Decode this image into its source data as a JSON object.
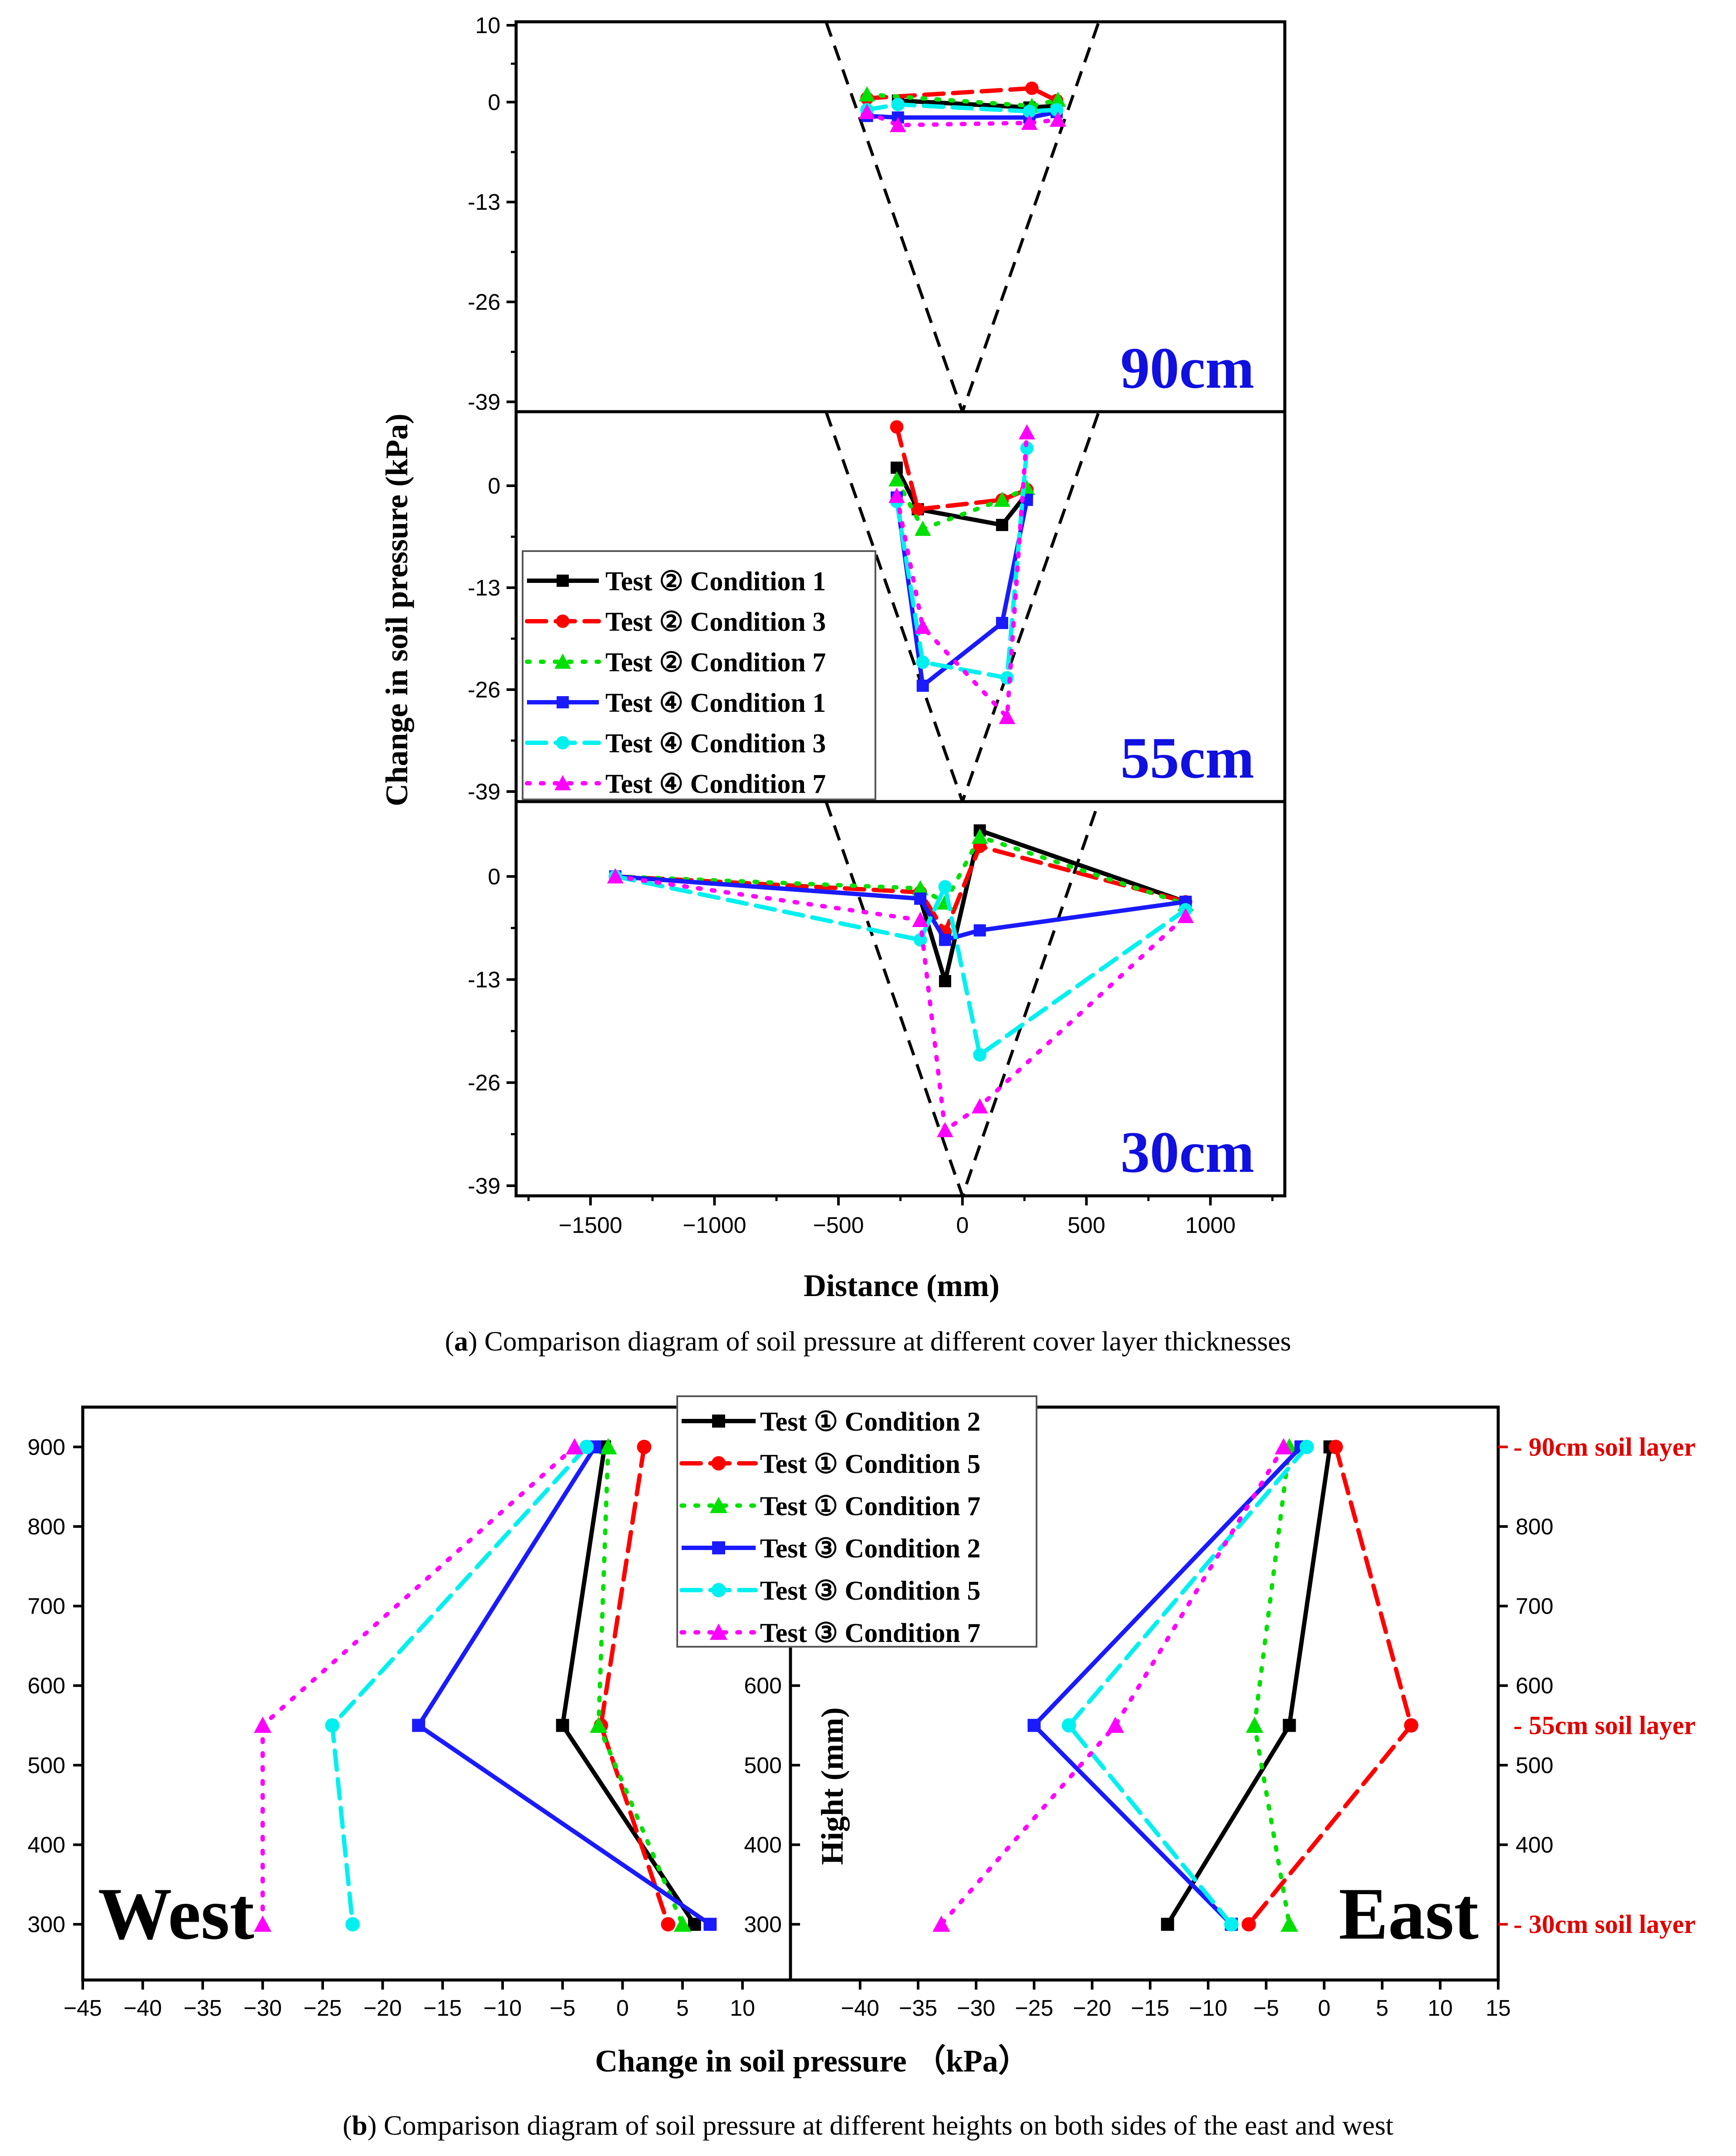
{
  "styles": [
    {
      "key": "s1",
      "color": "#000000",
      "dash": "",
      "marker": "square",
      "width": 10
    },
    {
      "key": "s2",
      "color": "#ff0000",
      "dash": "44,22",
      "marker": "circle",
      "width": 10
    },
    {
      "key": "s3",
      "color": "#00e000",
      "dash": "6,26",
      "marker": "triangle",
      "width": 10
    },
    {
      "key": "s4",
      "color": "#1a1aff",
      "dash": "",
      "marker": "square",
      "width": 10
    },
    {
      "key": "s5",
      "color": "#00f0f0",
      "dash": "44,22",
      "marker": "circle",
      "width": 10
    },
    {
      "key": "s6",
      "color": "#ff00ff",
      "dash": "6,26",
      "marker": "triangle",
      "width": 10
    }
  ],
  "chart_data": [
    {
      "id": "a",
      "type": "line",
      "xlabel": "Distance (mm)",
      "ylabel": "Change in soil pressure (kPa)",
      "xlim": [
        -1800,
        1300
      ],
      "x_ticks": [
        -1500,
        -1000,
        -500,
        0,
        500,
        1000
      ],
      "y_ticks": [
        10,
        0,
        -13,
        -26,
        -39
      ],
      "caption_prefix": "(",
      "caption_letter": "a",
      "caption_text": ") Comparison diagram of soil pressure at different cover layer thicknesses",
      "legend": [
        "Test ② Condition 1",
        "Test ② Condition 3",
        "Test ② Condition 7",
        "Test ④ Condition 1",
        "Test ④ Condition 3",
        "Test ④ Condition 7"
      ],
      "panels": [
        {
          "label": "90cm",
          "ylim": [
            -40,
            10
          ],
          "y_ticks": [
            10,
            0,
            -13,
            -26,
            -39
          ],
          "series": [
            {
              "name": "Test ② Condition 1",
              "points": [
                [
                  -260,
                  0.2
                ],
                [
                  270,
                  -0.7
                ],
                [
                  380,
                  -0.5
                ]
              ]
            },
            {
              "name": "Test ② Condition 3",
              "points": [
                [
                  -385,
                  0.5
                ],
                [
                  280,
                  1.8
                ],
                [
                  380,
                  0.2
                ]
              ]
            },
            {
              "name": "Test ② Condition 7",
              "points": [
                [
                  -385,
                  1.0
                ],
                [
                  280,
                  -0.5
                ],
                [
                  385,
                  0.3
                ]
              ]
            },
            {
              "name": "Test ④ Condition 1",
              "points": [
                [
                  -385,
                  -1.8
                ],
                [
                  -260,
                  -2.0
                ],
                [
                  270,
                  -2.0
                ],
                [
                  380,
                  -1.3
                ]
              ]
            },
            {
              "name": "Test ④ Condition 3",
              "points": [
                [
                  -385,
                  -1.0
                ],
                [
                  -260,
                  -0.3
                ],
                [
                  270,
                  -1.2
                ],
                [
                  380,
                  -1.0
                ]
              ]
            },
            {
              "name": "Test ④ Condition 7",
              "points": [
                [
                  -385,
                  -1.3
                ],
                [
                  -260,
                  -3.0
                ],
                [
                  270,
                  -2.7
                ],
                [
                  385,
                  -2.3
                ]
              ]
            }
          ]
        },
        {
          "label": "55cm",
          "ylim": [
            -40,
            9
          ],
          "y_ticks": [
            0,
            -13,
            -26,
            -39
          ],
          "series": [
            {
              "name": "Test ② Condition 1",
              "points": [
                [
                  -265,
                  2.3
                ],
                [
                  -180,
                  -3.0
                ],
                [
                  160,
                  -5.0
                ],
                [
                  260,
                  -1.0
                ]
              ]
            },
            {
              "name": "Test ② Condition 3",
              "points": [
                [
                  -265,
                  7.5
                ],
                [
                  -180,
                  -3.0
                ],
                [
                  160,
                  -1.8
                ],
                [
                  260,
                  -0.5
                ]
              ]
            },
            {
              "name": "Test ② Condition 7",
              "points": [
                [
                  -265,
                  0.8
                ],
                [
                  -160,
                  -5.5
                ],
                [
                  160,
                  -1.8
                ],
                [
                  260,
                  -0.3
                ]
              ]
            },
            {
              "name": "Test ④ Condition 1",
              "points": [
                [
                  -265,
                  -1.5
                ],
                [
                  -160,
                  -25.5
                ],
                [
                  160,
                  -17.5
                ],
                [
                  260,
                  -1.8
                ]
              ]
            },
            {
              "name": "Test ④ Condition 3",
              "points": [
                [
                  -265,
                  -2.0
                ],
                [
                  -160,
                  -22.5
                ],
                [
                  180,
                  -24.5
                ],
                [
                  260,
                  4.8
                ]
              ]
            },
            {
              "name": "Test ④ Condition 7",
              "points": [
                [
                  -265,
                  -1.3
                ],
                [
                  -160,
                  -18.0
                ],
                [
                  180,
                  -29.5
                ],
                [
                  260,
                  6.8
                ]
              ]
            }
          ]
        },
        {
          "label": "30cm",
          "ylim": [
            -40,
            9
          ],
          "y_ticks": [
            0,
            -13,
            -26,
            -39
          ],
          "series": [
            {
              "name": "Test ② Condition 1",
              "points": [
                [
                  -1400,
                  0
                ],
                [
                  -170,
                  -2.8
                ],
                [
                  -70,
                  -13.2
                ],
                [
                  70,
                  5.8
                ],
                [
                  900,
                  -3.2
                ]
              ]
            },
            {
              "name": "Test ② Condition 3",
              "points": [
                [
                  -1400,
                  0
                ],
                [
                  -170,
                  -2.0
                ],
                [
                  -70,
                  -7.0
                ],
                [
                  70,
                  3.8
                ],
                [
                  900,
                  -3.2
                ]
              ]
            },
            {
              "name": "Test ② Condition 7",
              "points": [
                [
                  -1400,
                  0
                ],
                [
                  -170,
                  -1.5
                ],
                [
                  -70,
                  -3.3
                ],
                [
                  70,
                  5.0
                ],
                [
                  900,
                  -3.5
                ]
              ]
            },
            {
              "name": "Test ④ Condition 1",
              "points": [
                [
                  -1400,
                  0
                ],
                [
                  -170,
                  -2.8
                ],
                [
                  -70,
                  -8.0
                ],
                [
                  70,
                  -6.8
                ],
                [
                  900,
                  -3.2
                ]
              ]
            },
            {
              "name": "Test ④ Condition 3",
              "points": [
                [
                  -1400,
                  0
                ],
                [
                  -170,
                  -8.0
                ],
                [
                  -70,
                  -1.3
                ],
                [
                  70,
                  -22.5
                ],
                [
                  900,
                  -4.2
                ]
              ]
            },
            {
              "name": "Test ④ Condition 7",
              "points": [
                [
                  -1400,
                  0
                ],
                [
                  -170,
                  -5.5
                ],
                [
                  -70,
                  -32.0
                ],
                [
                  70,
                  -29.0
                ],
                [
                  900,
                  -5.0
                ]
              ]
            }
          ]
        }
      ]
    },
    {
      "id": "b",
      "type": "line",
      "xlabel": "Change in soil pressure （kPa）",
      "ylabel": "Hight (mm)",
      "ylim": [
        230,
        950
      ],
      "y_ticks": [
        300,
        400,
        500,
        600,
        700,
        800,
        900
      ],
      "caption_prefix": "(",
      "caption_letter": "b",
      "caption_text": ") Comparison diagram of soil pressure at different heights on both sides of the east and west",
      "legend": [
        "Test ① Condition 2",
        "Test ① Condition 5",
        "Test ① Condition 7",
        "Test ③ Condition 2",
        "Test ③ Condition 5",
        "Test ③ Condition 7"
      ],
      "layer_labels": [
        {
          "y": 900,
          "text": "90cm soil layer"
        },
        {
          "y": 550,
          "text": "55cm soil layer"
        },
        {
          "y": 300,
          "text": "30cm soil layer"
        }
      ],
      "panels": [
        {
          "label": "West",
          "xlim": [
            -45,
            14
          ],
          "x_ticks": [
            -45,
            -40,
            -35,
            -30,
            -25,
            -20,
            -15,
            -10,
            -5,
            0,
            5,
            10
          ],
          "series": [
            {
              "name": "Test ① Condition 2",
              "points": [
                [
                  -1.5,
                  900
                ],
                [
                  -5,
                  550
                ],
                [
                  6,
                  300
                ]
              ]
            },
            {
              "name": "Test ① Condition 5",
              "points": [
                [
                  1.8,
                  900
                ],
                [
                  -1.8,
                  550
                ],
                [
                  3.8,
                  300
                ]
              ]
            },
            {
              "name": "Test ① Condition 7",
              "points": [
                [
                  -1.2,
                  900
                ],
                [
                  -2.0,
                  550
                ],
                [
                  5.0,
                  300
                ]
              ]
            },
            {
              "name": "Test ③ Condition 2",
              "points": [
                [
                  -2.3,
                  900
                ],
                [
                  -17,
                  550
                ],
                [
                  7.3,
                  300
                ]
              ]
            },
            {
              "name": "Test ③ Condition 5",
              "points": [
                [
                  -3.0,
                  900
                ],
                [
                  -24.2,
                  550
                ],
                [
                  -22.5,
                  300
                ]
              ]
            },
            {
              "name": "Test ③ Condition 7",
              "points": [
                [
                  -4.0,
                  900
                ],
                [
                  -30,
                  550
                ],
                [
                  -30,
                  300
                ]
              ]
            }
          ]
        },
        {
          "label": "East",
          "xlim": [
            -46,
            15
          ],
          "x_ticks": [
            -40,
            -35,
            -30,
            -25,
            -20,
            -15,
            -10,
            -5,
            0,
            5,
            10,
            15
          ],
          "series": [
            {
              "name": "Test ① Condition 2",
              "points": [
                [
                  0.5,
                  900
                ],
                [
                  -3,
                  550
                ],
                [
                  -13.5,
                  300
                ]
              ]
            },
            {
              "name": "Test ① Condition 5",
              "points": [
                [
                  1.0,
                  900
                ],
                [
                  7.5,
                  550
                ],
                [
                  -6.5,
                  300
                ]
              ]
            },
            {
              "name": "Test ① Condition 7",
              "points": [
                [
                  -3.0,
                  900
                ],
                [
                  -6.0,
                  550
                ],
                [
                  -3.0,
                  300
                ]
              ]
            },
            {
              "name": "Test ③ Condition 2",
              "points": [
                [
                  -2.0,
                  900
                ],
                [
                  -25,
                  550
                ],
                [
                  -8.0,
                  300
                ]
              ]
            },
            {
              "name": "Test ③ Condition 5",
              "points": [
                [
                  -1.5,
                  900
                ],
                [
                  -22,
                  550
                ],
                [
                  -8.0,
                  300
                ]
              ]
            },
            {
              "name": "Test ③ Condition 7",
              "points": [
                [
                  -3.5,
                  900
                ],
                [
                  -18,
                  550
                ],
                [
                  -33,
                  300
                ]
              ]
            }
          ]
        }
      ]
    }
  ]
}
